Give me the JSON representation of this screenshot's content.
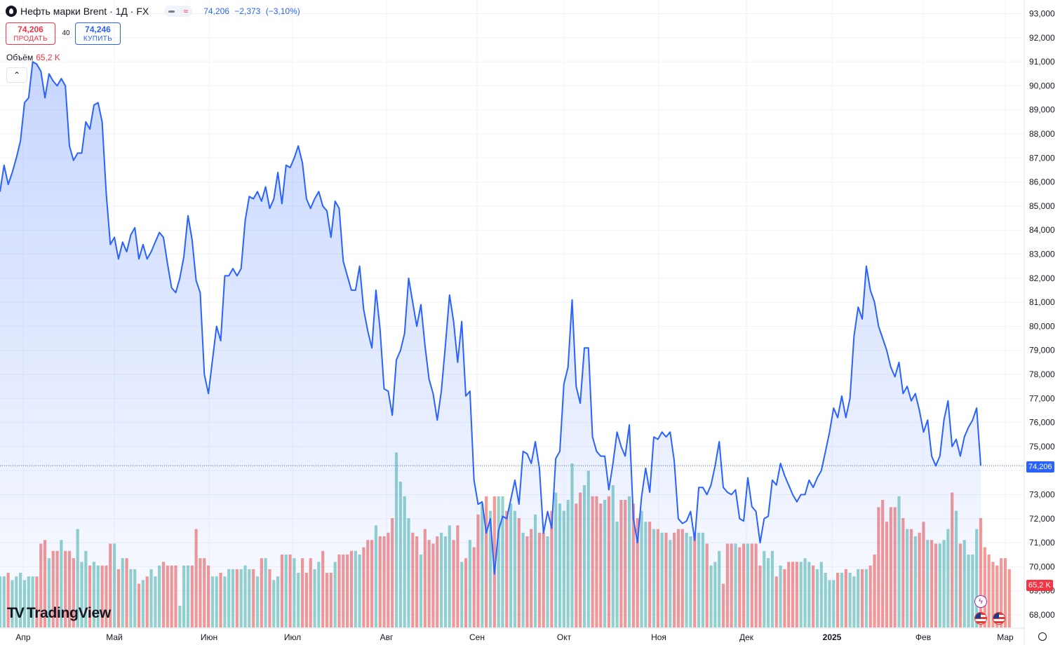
{
  "header": {
    "title": "Нефть марки Brent · 1Д · FX",
    "last": "74,206",
    "change": "−2,373",
    "change_pct": "(−3,10%)"
  },
  "trade": {
    "sell_price": "74,206",
    "sell_label": "ПРОДАТЬ",
    "spread": "40",
    "buy_price": "74,246",
    "buy_label": "КУПИТЬ"
  },
  "volume": {
    "label": "Объём",
    "value": "65,2 K"
  },
  "logo": "TradingView",
  "price_label": "74,206",
  "volume_label": "65,2 K",
  "icons": {
    "collapse": "chevron-up-icon",
    "logo": "tradingview-logo-icon",
    "event": "lightning-icon",
    "flag": "us-flag-icon",
    "settings": "gear-icon"
  },
  "colors": {
    "line": "#2962ff",
    "up_volume": "#4db6ac",
    "down_volume": "#ef5350",
    "price_label": "#2962ff",
    "volume_label": "#f23645"
  },
  "chart_data": {
    "type": "area",
    "title": "Нефть марки Brent · 1Д · FX",
    "x_tick_labels": [
      "Апр",
      "Май",
      "Июн",
      "Июл",
      "Авг",
      "Сен",
      "Окт",
      "Ноя",
      "Дек",
      "2025",
      "Фев",
      "Мар"
    ],
    "y_tick_labels": [
      "93,000",
      "92,000",
      "91,000",
      "90,000",
      "89,000",
      "88,000",
      "87,000",
      "86,000",
      "85,000",
      "84,000",
      "83,000",
      "82,000",
      "81,000",
      "80,000",
      "79,000",
      "78,000",
      "77,000",
      "76,000",
      "75,000",
      "73,000",
      "72,000",
      "71,000",
      "70,000",
      "69,000",
      "68,000"
    ],
    "ylim": [
      67.5,
      93.4
    ],
    "grid": true,
    "last_price": 74.206,
    "series": [
      {
        "values": [
          85.6,
          86.7,
          85.9,
          86.4,
          87.0,
          87.7,
          89.3,
          89.5,
          91.0,
          90.9,
          90.6,
          89.5,
          90.5,
          90.2,
          90.0,
          90.3,
          90.0,
          87.5,
          86.9,
          87.2,
          87.2,
          88.5,
          88.2,
          89.2,
          89.3,
          88.5,
          85.5,
          83.4,
          83.7,
          82.8,
          83.5,
          83.1,
          83.8,
          84.1,
          82.8,
          83.4,
          82.8,
          83.1,
          83.5,
          83.9,
          83.7,
          82.6,
          81.6,
          81.4,
          82.0,
          82.9,
          84.6,
          83.6,
          81.9,
          81.4,
          78.0,
          77.2,
          78.6,
          80.0,
          79.4,
          82.1,
          82.1,
          82.4,
          82.1,
          82.4,
          84.4,
          85.4,
          85.3,
          85.6,
          85.2,
          85.8,
          84.9,
          85.3,
          86.4,
          85.1,
          86.7,
          86.6,
          87.0,
          87.5,
          86.8,
          85.3,
          84.9,
          85.3,
          85.6,
          85.0,
          84.8,
          83.7,
          85.2,
          84.9,
          82.7,
          82.1,
          81.5,
          81.5,
          82.5,
          80.7,
          79.8,
          79.1,
          81.5,
          79.9,
          77.4,
          77.3,
          76.3,
          78.6,
          79.0,
          79.7,
          82.0,
          81.0,
          80.0,
          80.9,
          79.2,
          77.8,
          77.2,
          76.1,
          77.3,
          79.2,
          81.3,
          80.2,
          78.5,
          80.2,
          77.1,
          77.3,
          73.6,
          72.6,
          72.7,
          71.4,
          72.0,
          69.7,
          71.5,
          72.1,
          72.0,
          72.8,
          73.6,
          72.6,
          74.8,
          74.7,
          74.3,
          75.2,
          74.1,
          71.4,
          72.3,
          71.6,
          74.5,
          74.8,
          77.6,
          78.3,
          81.1,
          77.5,
          76.8,
          79.1,
          79.1,
          75.4,
          74.8,
          74.6,
          74.6,
          73.2,
          74.3,
          75.6,
          75.0,
          74.6,
          75.9,
          72.0,
          71.0,
          72.9,
          74.1,
          73.1,
          75.4,
          75.3,
          75.6,
          75.4,
          75.6,
          74.4,
          72.0,
          71.8,
          71.9,
          72.3,
          71.1,
          73.3,
          73.3,
          73.0,
          73.4,
          74.2,
          75.2,
          73.3,
          73.1,
          73.0,
          73.2,
          72.0,
          71.9,
          73.7,
          72.5,
          72.3,
          71.0,
          72.0,
          72.1,
          73.6,
          73.4,
          74.3,
          73.8,
          73.4,
          73.0,
          72.7,
          73.0,
          73.0,
          73.6,
          73.3,
          73.7,
          74.0,
          74.8,
          75.6,
          76.6,
          76.2,
          77.1,
          76.2,
          77.0,
          79.6,
          80.8,
          80.3,
          82.5,
          81.5,
          81.0,
          80.0,
          79.5,
          79.0,
          78.3,
          77.9,
          78.5,
          77.2,
          77.5,
          76.9,
          77.2,
          76.5,
          75.6,
          76.1,
          74.6,
          74.2,
          74.6,
          76.1,
          76.9,
          75.0,
          75.3,
          74.6,
          75.4,
          75.8,
          76.1,
          76.6,
          74.206
        ]
      }
    ],
    "volume": {
      "values": [
        1.4,
        1.4,
        1.5,
        1.3,
        1.4,
        1.5,
        1.3,
        1.4,
        1.4,
        1.4,
        2.3,
        2.4,
        1.9,
        2.1,
        2.1,
        2.4,
        2.1,
        2.1,
        1.9,
        2.7,
        1.8,
        2.1,
        1.7,
        1.8,
        1.7,
        1.7,
        1.7,
        2.3,
        2.3,
        1.6,
        1.9,
        1.9,
        1.6,
        1.6,
        1.2,
        1.3,
        1.4,
        1.6,
        1.4,
        1.7,
        1.8,
        1.7,
        1.7,
        1.7,
        0.6,
        1.7,
        1.7,
        1.7,
        2.7,
        1.9,
        1.9,
        1.7,
        1.4,
        1.4,
        1.5,
        1.4,
        1.6,
        1.6,
        1.6,
        1.6,
        1.7,
        1.6,
        1.6,
        1.4,
        1.9,
        1.9,
        1.6,
        1.3,
        1.4,
        2.0,
        2.0,
        2.0,
        1.9,
        1.5,
        1.9,
        1.5,
        1.9,
        1.6,
        1.8,
        2.1,
        1.5,
        1.5,
        1.8,
        2.0,
        2.0,
        2.0,
        2.1,
        2.1,
        2.0,
        2.2,
        2.4,
        2.4,
        2.8,
        2.5,
        2.5,
        2.6,
        3.0,
        4.8,
        4.0,
        3.6,
        3.0,
        2.6,
        2.5,
        2.0,
        2.7,
        2.4,
        2.3,
        2.5,
        2.6,
        2.5,
        2.8,
        2.4,
        2.8,
        1.8,
        1.9,
        2.4,
        2.2,
        3.1,
        3.4,
        3.6,
        3.2,
        3.6,
        3.6,
        3.6,
        3.2,
        3.4,
        3.2,
        3.0,
        2.6,
        2.5,
        2.7,
        3.1,
        2.6,
        2.6,
        2.5,
        3.2,
        3.7,
        3.4,
        3.2,
        3.5,
        4.5,
        3.4,
        3.7,
        3.9,
        4.3,
        3.6,
        3.6,
        3.4,
        3.5,
        3.6,
        3.9,
        2.9,
        3.5,
        3.5,
        3.6,
        3.4,
        3.0,
        3.2,
        2.9,
        2.9,
        2.7,
        2.7,
        2.6,
        2.6,
        2.4,
        2.6,
        2.7,
        2.7,
        2.6,
        2.5,
        2.6,
        2.6,
        2.6,
        2.3,
        1.7,
        1.8,
        2.1,
        1.2,
        2.3,
        2.3,
        2.3,
        2.2,
        2.3,
        2.3,
        2.3,
        2.3,
        1.7,
        2.1,
        1.9,
        2.1,
        1.4,
        1.7,
        1.6,
        1.8,
        1.8,
        1.8,
        1.8,
        1.9,
        1.8,
        1.7,
        1.6,
        1.8,
        1.5,
        1.3,
        1.3,
        1.5,
        1.5,
        1.6,
        1.5,
        1.4,
        1.6,
        1.6,
        1.6,
        1.7,
        2.0,
        3.3,
        3.5,
        2.9,
        3.3,
        3.3,
        3.6,
        3.0,
        2.7,
        2.7,
        2.5,
        2.6,
        2.9,
        2.4,
        2.4,
        2.3,
        2.3,
        2.4,
        2.7,
        3.7,
        3.2,
        2.3,
        2.4,
        2.0,
        2.0,
        2.7,
        3.0,
        2.2,
        2.0,
        1.8,
        1.7,
        1.9,
        1.9,
        1.6
      ]
    }
  }
}
